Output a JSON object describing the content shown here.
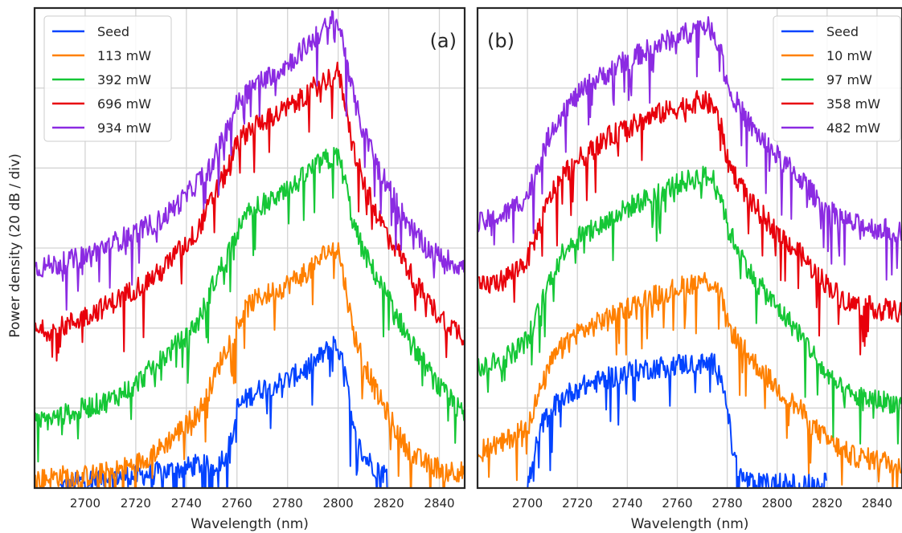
{
  "chart_data": [
    {
      "type": "line",
      "panel_label": "(a)",
      "xlabel": "Wavelength (nm)",
      "ylabel": "Power density (20 dB / div)",
      "xlim": [
        2680,
        2850
      ],
      "ylim": [
        0,
        12
      ],
      "xticks": [
        2700,
        2720,
        2740,
        2760,
        2780,
        2800,
        2820,
        2840
      ],
      "grid": true,
      "legend_position": "top-left",
      "series": [
        {
          "name": "Seed",
          "color": "#0343ff",
          "x": [
            2690,
            2700,
            2710,
            2720,
            2730,
            2740,
            2745,
            2750,
            2755,
            2758,
            2760,
            2765,
            2770,
            2775,
            2780,
            2785,
            2790,
            2795,
            2798,
            2800,
            2803,
            2806,
            2810,
            2815,
            2820
          ],
          "y": [
            0.0,
            0.2,
            0.3,
            0.3,
            0.4,
            0.5,
            0.6,
            0.5,
            0.8,
            1.2,
            2.0,
            2.3,
            2.5,
            2.6,
            2.7,
            2.9,
            3.1,
            3.4,
            3.6,
            3.5,
            2.8,
            1.4,
            0.8,
            0.5,
            0.3
          ]
        },
        {
          "name": "113 mW",
          "color": "#ff8000",
          "x": [
            2680,
            2690,
            2700,
            2710,
            2720,
            2725,
            2730,
            2735,
            2740,
            2745,
            2750,
            2755,
            2760,
            2765,
            2770,
            2775,
            2780,
            2785,
            2790,
            2795,
            2800,
            2803,
            2806,
            2810,
            2815,
            2820,
            2825,
            2830,
            2835,
            2840,
            2850
          ],
          "y": [
            0.2,
            0.3,
            0.3,
            0.4,
            0.6,
            0.8,
            1.0,
            1.3,
            1.6,
            1.9,
            2.6,
            3.4,
            4.1,
            4.6,
            4.8,
            4.9,
            5.1,
            5.3,
            5.5,
            5.9,
            6.0,
            5.0,
            3.9,
            3.2,
            2.4,
            1.8,
            1.2,
            0.8,
            0.6,
            0.5,
            0.4
          ]
        },
        {
          "name": "392 mW",
          "color": "#15c736",
          "x": [
            2680,
            2690,
            2700,
            2710,
            2720,
            2725,
            2730,
            2735,
            2740,
            2745,
            2750,
            2755,
            2760,
            2765,
            2770,
            2775,
            2780,
            2785,
            2790,
            2795,
            2800,
            2803,
            2806,
            2810,
            2815,
            2820,
            2825,
            2830,
            2835,
            2840,
            2850
          ],
          "y": [
            1.6,
            1.8,
            2.0,
            2.2,
            2.6,
            2.9,
            3.2,
            3.5,
            3.8,
            4.2,
            5.0,
            5.7,
            6.4,
            6.9,
            7.1,
            7.2,
            7.4,
            7.7,
            8.0,
            8.2,
            8.3,
            7.6,
            6.6,
            5.9,
            5.3,
            4.7,
            4.1,
            3.5,
            3.0,
            2.5,
            1.8
          ]
        },
        {
          "name": "696 mW",
          "color": "#e8000b",
          "x": [
            2680,
            2690,
            2700,
            2710,
            2720,
            2730,
            2735,
            2740,
            2745,
            2750,
            2755,
            2760,
            2765,
            2770,
            2775,
            2780,
            2785,
            2790,
            2795,
            2800,
            2803,
            2806,
            2810,
            2815,
            2820,
            2825,
            2830,
            2835,
            2840,
            2850
          ],
          "y": [
            3.9,
            4.0,
            4.3,
            4.6,
            5.0,
            5.4,
            5.8,
            6.1,
            6.5,
            7.2,
            7.8,
            8.6,
            9.0,
            9.2,
            9.3,
            9.5,
            9.7,
            10.0,
            10.2,
            10.4,
            9.6,
            8.5,
            7.6,
            6.9,
            6.3,
            5.8,
            5.2,
            4.7,
            4.3,
            3.8
          ]
        },
        {
          "name": "934 mW",
          "color": "#8b2be2",
          "x": [
            2680,
            2690,
            2700,
            2710,
            2720,
            2730,
            2735,
            2740,
            2745,
            2750,
            2755,
            2760,
            2765,
            2770,
            2775,
            2780,
            2785,
            2790,
            2795,
            2798,
            2800,
            2803,
            2806,
            2810,
            2815,
            2820,
            2825,
            2830,
            2835,
            2840,
            2850
          ],
          "y": [
            5.5,
            5.6,
            5.8,
            6.1,
            6.4,
            6.7,
            7.0,
            7.3,
            7.7,
            8.1,
            8.8,
            9.6,
            10.0,
            10.2,
            10.4,
            10.6,
            10.9,
            11.2,
            11.5,
            11.7,
            11.6,
            10.9,
            9.8,
            8.9,
            8.2,
            7.5,
            6.9,
            6.4,
            6.0,
            5.8,
            5.5
          ]
        }
      ]
    },
    {
      "type": "line",
      "panel_label": "(b)",
      "xlabel": "Wavelength (nm)",
      "ylabel": "",
      "xlim": [
        2680,
        2850
      ],
      "ylim": [
        0,
        12
      ],
      "xticks": [
        2700,
        2720,
        2740,
        2760,
        2780,
        2800,
        2820,
        2840
      ],
      "grid": true,
      "legend_position": "top-right",
      "series": [
        {
          "name": "Seed",
          "color": "#0343ff",
          "x": [
            2700,
            2703,
            2706,
            2710,
            2715,
            2720,
            2725,
            2730,
            2740,
            2750,
            2760,
            2770,
            2775,
            2778,
            2780,
            2782,
            2785,
            2790,
            2800,
            2810,
            2820
          ],
          "y": [
            0.0,
            0.9,
            1.6,
            2.0,
            2.3,
            2.5,
            2.6,
            2.7,
            2.9,
            3.0,
            3.1,
            3.1,
            3.1,
            2.8,
            2.0,
            1.0,
            0.3,
            0.1,
            0.1,
            0.1,
            0.1
          ]
        },
        {
          "name": "10 mW",
          "color": "#ff8000",
          "x": [
            2680,
            2690,
            2700,
            2705,
            2710,
            2715,
            2720,
            2725,
            2730,
            2740,
            2750,
            2760,
            2765,
            2770,
            2775,
            2778,
            2780,
            2785,
            2790,
            2800,
            2810,
            2815,
            2820,
            2825,
            2830,
            2840,
            2850
          ],
          "y": [
            1.0,
            1.1,
            1.6,
            2.4,
            3.2,
            3.6,
            3.9,
            4.0,
            4.2,
            4.5,
            4.8,
            5.0,
            5.1,
            5.2,
            5.1,
            4.7,
            4.1,
            3.6,
            3.2,
            2.5,
            1.9,
            1.5,
            1.2,
            1.0,
            0.8,
            0.7,
            0.6
          ]
        },
        {
          "name": "97 mW",
          "color": "#15c736",
          "x": [
            2680,
            2690,
            2700,
            2705,
            2710,
            2715,
            2720,
            2725,
            2730,
            2740,
            2750,
            2760,
            2765,
            2770,
            2775,
            2778,
            2780,
            2785,
            2790,
            2800,
            2810,
            2815,
            2820,
            2825,
            2830,
            2840,
            2850
          ],
          "y": [
            3.0,
            3.2,
            3.7,
            4.5,
            5.4,
            6.0,
            6.3,
            6.4,
            6.6,
            7.0,
            7.3,
            7.6,
            7.7,
            7.8,
            7.7,
            7.2,
            6.5,
            5.9,
            5.3,
            4.5,
            3.8,
            3.3,
            2.8,
            2.5,
            2.3,
            2.2,
            2.1
          ]
        },
        {
          "name": "358 mW",
          "color": "#e8000b",
          "x": [
            2680,
            2690,
            2700,
            2705,
            2710,
            2715,
            2720,
            2725,
            2730,
            2740,
            2750,
            2760,
            2765,
            2770,
            2775,
            2778,
            2780,
            2785,
            2790,
            2800,
            2810,
            2815,
            2820,
            2825,
            2830,
            2840,
            2850
          ],
          "y": [
            5.0,
            5.2,
            5.7,
            6.6,
            7.4,
            7.9,
            8.2,
            8.4,
            8.7,
            9.0,
            9.3,
            9.5,
            9.6,
            9.7,
            9.5,
            8.9,
            8.2,
            7.6,
            7.1,
            6.4,
            5.8,
            5.4,
            5.1,
            4.8,
            4.6,
            4.5,
            4.4
          ]
        },
        {
          "name": "482 mW",
          "color": "#8b2be2",
          "x": [
            2680,
            2690,
            2700,
            2705,
            2710,
            2715,
            2720,
            2725,
            2730,
            2740,
            2750,
            2760,
            2765,
            2770,
            2775,
            2778,
            2780,
            2785,
            2790,
            2800,
            2810,
            2815,
            2820,
            2825,
            2830,
            2840,
            2850
          ],
          "y": [
            6.6,
            6.8,
            7.3,
            8.2,
            9.0,
            9.5,
            9.8,
            10.1,
            10.3,
            10.7,
            11.0,
            11.3,
            11.4,
            11.6,
            11.4,
            10.8,
            10.1,
            9.5,
            9.0,
            8.3,
            7.7,
            7.3,
            7.0,
            6.8,
            6.6,
            6.5,
            6.4
          ]
        }
      ]
    }
  ]
}
